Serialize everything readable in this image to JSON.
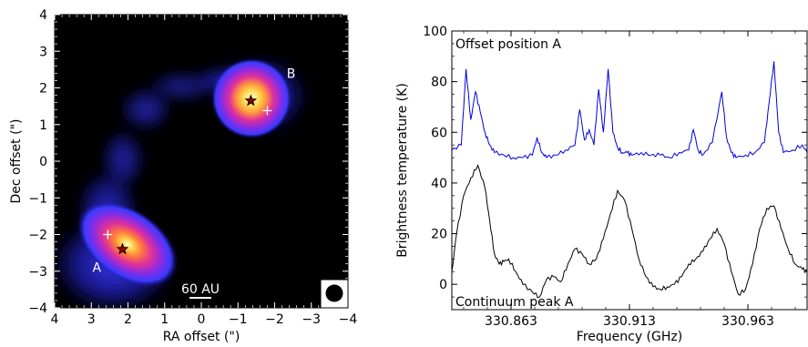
{
  "chart_data": [
    {
      "type": "heatmap",
      "xlabel": "RA offset (\")",
      "ylabel": "Dec offset (\")",
      "xlim": [
        4,
        -4
      ],
      "ylim": [
        -4,
        4
      ],
      "xticks": [
        "4",
        "3",
        "2",
        "1",
        "0",
        "−1",
        "−2",
        "−3",
        "−4"
      ],
      "yticks": [
        "−4",
        "−3",
        "−2",
        "−1",
        "0",
        "1",
        "2",
        "3",
        "4"
      ],
      "colormap": [
        "#000000",
        "#1a0a8c",
        "#3b3bff",
        "#8a2be2",
        "#e0309a",
        "#ff7a3a",
        "#ffd24a",
        "#ffffd0"
      ],
      "sources": [
        {
          "label": "A",
          "label_pos": [
            2.85,
            -2.9
          ],
          "star": [
            2.15,
            -2.4
          ],
          "cross": [
            2.55,
            -2.0
          ]
        },
        {
          "label": "B",
          "label_pos": [
            -2.45,
            2.4
          ],
          "star": [
            -1.35,
            1.65
          ],
          "cross": [
            -1.8,
            1.38
          ]
        }
      ],
      "scalebar_label": "60 AU",
      "beam": "filled-circle",
      "colors": {
        "star": "#8b0000",
        "cross": "#ffffff",
        "background": "#000000"
      }
    },
    {
      "type": "line",
      "xlabel": "Frequency (GHz)",
      "ylabel": "Brightness temperature (K)",
      "xlim": [
        330.838,
        330.988
      ],
      "ylim": [
        -10,
        100
      ],
      "xticks": [
        "330.863",
        "330.913",
        "330.963"
      ],
      "yticks": [
        "0",
        "20",
        "40",
        "60",
        "80",
        "100"
      ],
      "series": [
        {
          "name": "Offset position A",
          "color": "#0000dd",
          "x": [
            330.838,
            330.842,
            330.844,
            330.846,
            330.848,
            330.85,
            330.852,
            330.854,
            330.856,
            330.86,
            330.864,
            330.868,
            330.872,
            330.874,
            330.876,
            330.878,
            330.882,
            330.886,
            330.89,
            330.892,
            330.894,
            330.896,
            330.898,
            330.9,
            330.902,
            330.904,
            330.906,
            330.908,
            330.91,
            330.912,
            330.914,
            330.918,
            330.922,
            330.926,
            330.93,
            330.934,
            330.938,
            330.94,
            330.942,
            330.944,
            330.948,
            330.952,
            330.954,
            330.956,
            330.958,
            330.962,
            330.966,
            330.97,
            330.972,
            330.974,
            330.976,
            330.978,
            330.982,
            330.986,
            330.988
          ],
          "values": [
            53,
            55,
            85,
            65,
            76,
            68,
            60,
            55,
            52,
            51,
            50,
            50,
            51,
            58,
            52,
            50,
            51,
            53,
            55,
            69,
            57,
            61,
            55,
            77,
            60,
            85,
            60,
            54,
            52,
            52,
            51,
            52,
            51,
            51,
            50,
            52,
            53,
            61,
            53,
            51,
            56,
            76,
            58,
            52,
            50,
            51,
            52,
            56,
            72,
            88,
            60,
            52,
            53,
            55,
            52
          ]
        },
        {
          "name": "Continuum peak A",
          "color": "#000000",
          "x": [
            330.838,
            330.84,
            330.843,
            330.846,
            330.849,
            330.852,
            330.854,
            330.856,
            330.858,
            330.86,
            330.862,
            330.865,
            330.868,
            330.872,
            330.875,
            330.878,
            330.881,
            330.884,
            330.887,
            330.89,
            330.893,
            330.896,
            330.899,
            330.902,
            330.905,
            330.908,
            330.911,
            330.914,
            330.917,
            330.92,
            330.923,
            330.926,
            330.929,
            330.932,
            330.935,
            330.938,
            330.941,
            330.944,
            330.947,
            330.95,
            330.953,
            330.956,
            330.959,
            330.962,
            330.965,
            330.968,
            330.971,
            330.974,
            330.977,
            330.98,
            330.983,
            330.986,
            330.988
          ],
          "values": [
            5,
            20,
            35,
            42,
            47,
            38,
            25,
            12,
            8,
            9,
            10,
            5,
            0,
            -3,
            -5,
            2,
            3,
            1,
            8,
            14,
            12,
            8,
            10,
            18,
            28,
            37,
            33,
            22,
            10,
            3,
            -1,
            -2,
            -1,
            0,
            3,
            8,
            10,
            13,
            18,
            22,
            16,
            5,
            -4,
            -2,
            8,
            22,
            30,
            31,
            22,
            14,
            8,
            6,
            5
          ]
        }
      ]
    }
  ]
}
